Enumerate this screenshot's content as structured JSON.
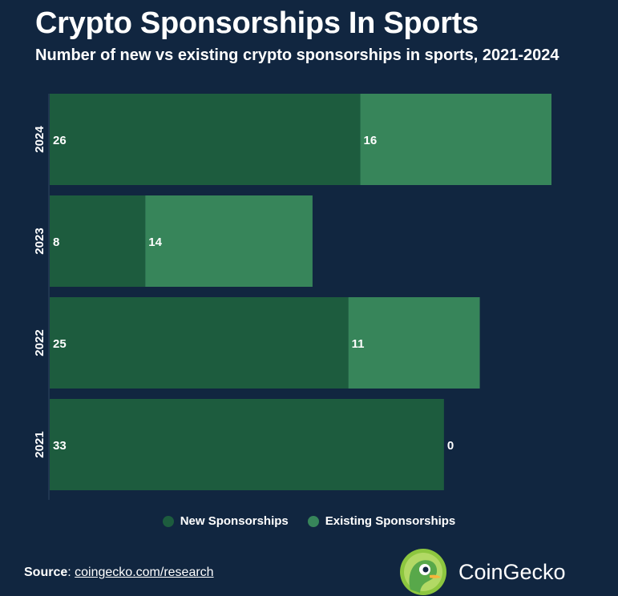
{
  "header": {
    "title": "Crypto Sponsorships In Sports",
    "subtitle": "Number of new vs existing crypto sponsorships in sports, 2021-2024"
  },
  "chart_data": {
    "type": "bar",
    "orientation": "horizontal",
    "stacked": true,
    "categories": [
      "2024",
      "2023",
      "2022",
      "2021"
    ],
    "series": [
      {
        "name": "New Sponsorships",
        "values": [
          26,
          8,
          25,
          33
        ],
        "color": "#1d5c3e"
      },
      {
        "name": "Existing Sponsorships",
        "values": [
          16,
          14,
          11,
          0
        ],
        "color": "#37855a"
      }
    ],
    "xlim": [
      0,
      42
    ],
    "grid": false,
    "legend_position": "bottom-center"
  },
  "footer": {
    "source_label": "Source",
    "source_sep": ":",
    "source_link": "coingecko.com/research",
    "brand_name": "CoinGecko",
    "brand_icon": "coingecko-logo-icon"
  },
  "colors": {
    "background": "#112640",
    "new": "#1d5c3e",
    "existing": "#37855a",
    "text": "#ffffff"
  }
}
